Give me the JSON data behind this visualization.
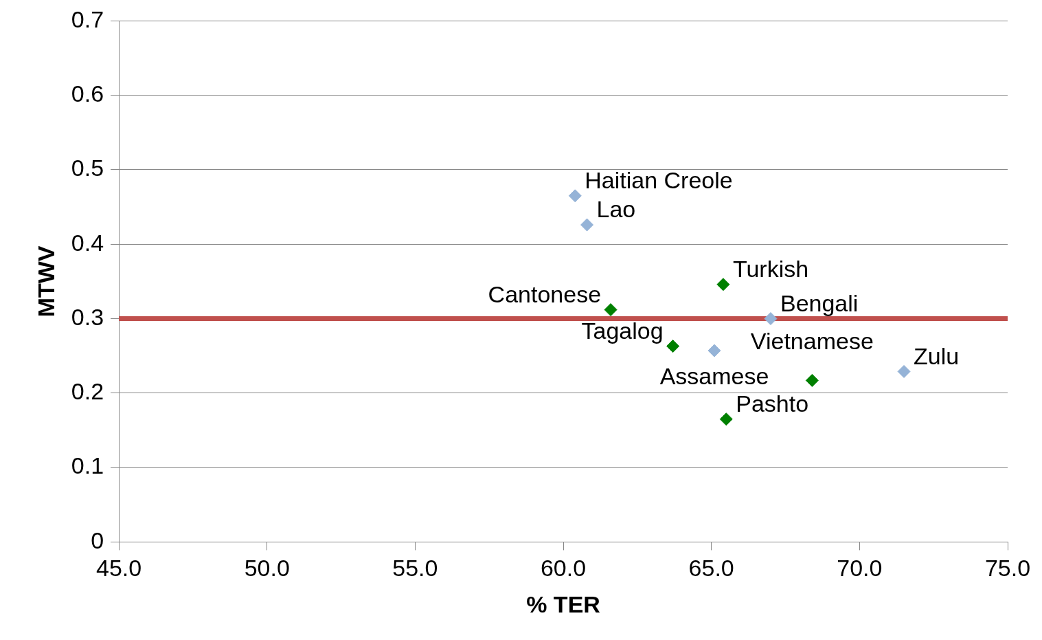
{
  "chart_data": {
    "type": "scatter",
    "xlabel": "% TER",
    "ylabel": "MTWV",
    "series": [
      {
        "color": "#95b3d7",
        "x": [
          60.4,
          60.8,
          67.0,
          65.1,
          71.5
        ],
        "values": [
          0.465,
          0.426,
          0.3,
          0.257,
          0.229
        ]
      },
      {
        "color": "#008000",
        "x": [
          61.6,
          65.4,
          63.7,
          68.4,
          65.5
        ],
        "values": [
          0.312,
          0.346,
          0.263,
          0.217,
          0.165
        ]
      }
    ],
    "annotations": [
      {
        "text": "Haitian Creole",
        "x": 60.4,
        "y": 0.465
      },
      {
        "text": "Lao",
        "x": 60.8,
        "y": 0.426
      },
      {
        "text": "Cantonese",
        "x": 61.6,
        "y": 0.312
      },
      {
        "text": "Turkish",
        "x": 65.4,
        "y": 0.346
      },
      {
        "text": "Bengali",
        "x": 67.0,
        "y": 0.3
      },
      {
        "text": "Tagalog",
        "x": 63.7,
        "y": 0.263
      },
      {
        "text": "Assamese",
        "x": 65.1,
        "y": 0.257
      },
      {
        "text": "Vietnamese",
        "x": 68.4,
        "y": 0.217
      },
      {
        "text": "Zulu",
        "x": 71.5,
        "y": 0.229
      },
      {
        "text": "Pashto",
        "x": 65.5,
        "y": 0.165
      }
    ],
    "ref_lines": [
      {
        "axis": "y",
        "value": 0.3,
        "color": "#c0504d"
      }
    ],
    "xlim": [
      45,
      75
    ],
    "xticks": [
      {
        "value": 45,
        "label": "45.0"
      },
      {
        "value": 50,
        "label": "50.0"
      },
      {
        "value": 55,
        "label": "55.0"
      },
      {
        "value": 60,
        "label": "60.0"
      },
      {
        "value": 65,
        "label": "65.0"
      },
      {
        "value": 70,
        "label": "70.0"
      },
      {
        "value": 75,
        "label": "75.0"
      }
    ],
    "ylim": [
      0,
      0.7
    ],
    "yticks": [
      0,
      0.1,
      0.2,
      0.3,
      0.4,
      0.5,
      0.6,
      0.7
    ],
    "grid": "y",
    "legend": false,
    "marker": "diamond"
  }
}
